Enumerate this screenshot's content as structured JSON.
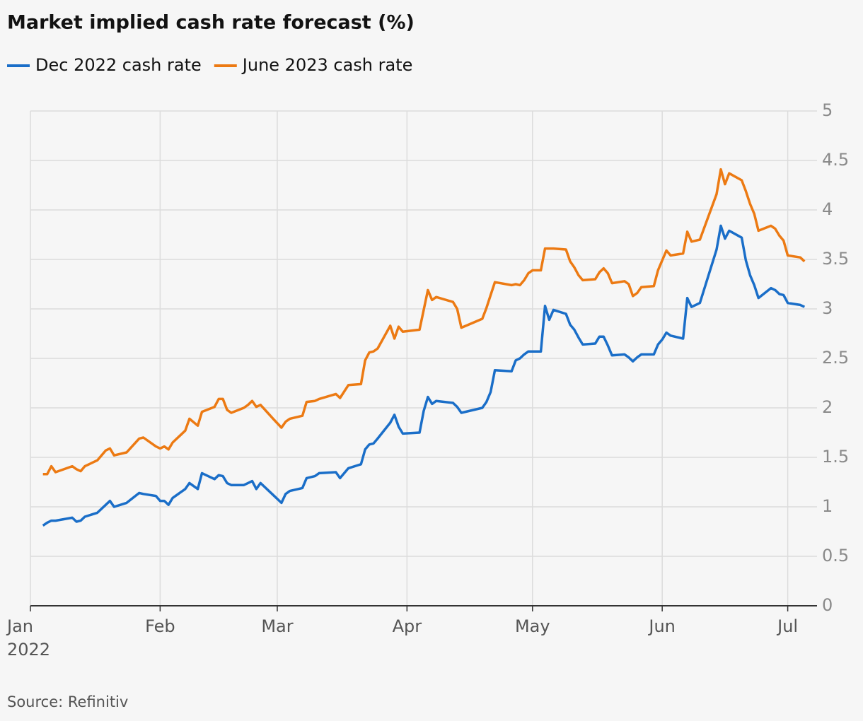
{
  "chart_data": {
    "type": "line",
    "title": "Market implied cash rate forecast (%)",
    "source": "Source: Refinitiv",
    "x_start_year": "2022",
    "x": [
      3,
      4,
      5,
      6,
      10,
      11,
      12,
      13,
      16,
      18,
      19,
      20,
      23,
      26,
      27,
      30,
      31,
      32,
      33,
      34,
      37,
      38,
      40,
      41,
      44,
      45,
      46,
      47,
      48,
      51,
      52,
      53,
      54,
      55,
      58,
      60,
      61,
      62,
      65,
      66,
      68,
      69,
      73,
      74,
      76,
      79,
      80,
      81,
      82,
      83,
      86,
      87,
      88,
      89,
      93,
      94,
      95,
      96,
      97,
      101,
      102,
      103,
      108,
      109,
      110,
      111,
      115,
      116,
      117,
      118,
      119,
      120,
      122,
      123,
      124,
      125,
      128,
      129,
      130,
      131,
      132,
      135,
      136,
      137,
      138,
      139,
      142,
      143,
      144,
      145,
      146,
      149,
      150,
      151,
      152,
      153,
      156,
      157,
      158,
      159,
      160,
      164,
      165,
      166,
      167,
      170,
      171,
      172,
      173,
      174,
      177,
      178,
      179,
      180,
      181,
      184,
      185
    ],
    "series": [
      {
        "name": "Dec 2022 cash rate",
        "color": "#1a6ec8",
        "values": [
          0.81,
          0.84,
          0.86,
          0.86,
          0.89,
          0.85,
          0.86,
          0.9,
          0.94,
          1.02,
          1.06,
          1.0,
          1.04,
          1.14,
          1.13,
          1.11,
          1.06,
          1.06,
          1.02,
          1.09,
          1.18,
          1.24,
          1.18,
          1.34,
          1.28,
          1.32,
          1.31,
          1.24,
          1.22,
          1.22,
          1.24,
          1.26,
          1.18,
          1.24,
          1.12,
          1.04,
          1.13,
          1.16,
          1.19,
          1.29,
          1.31,
          1.34,
          1.35,
          1.29,
          1.39,
          1.43,
          1.58,
          1.63,
          1.64,
          1.69,
          1.85,
          1.93,
          1.81,
          1.74,
          1.75,
          1.97,
          2.11,
          2.04,
          2.07,
          2.05,
          2.01,
          1.95,
          2.0,
          2.06,
          2.16,
          2.38,
          2.37,
          2.48,
          2.5,
          2.54,
          2.57,
          2.57,
          2.57,
          3.03,
          2.89,
          2.99,
          2.95,
          2.84,
          2.79,
          2.71,
          2.64,
          2.65,
          2.72,
          2.72,
          2.63,
          2.53,
          2.54,
          2.51,
          2.47,
          2.51,
          2.54,
          2.54,
          2.64,
          2.69,
          2.76,
          2.73,
          2.7,
          3.11,
          3.02,
          3.04,
          3.06,
          3.6,
          3.84,
          3.71,
          3.79,
          3.72,
          3.49,
          3.34,
          3.24,
          3.11,
          3.21,
          3.19,
          3.15,
          3.14,
          3.06,
          3.04,
          3.02
        ]
      },
      {
        "name": "June 2023 cash rate",
        "color": "#ec7a13",
        "values": [
          1.33,
          1.33,
          1.41,
          1.35,
          1.41,
          1.38,
          1.36,
          1.41,
          1.47,
          1.57,
          1.59,
          1.52,
          1.55,
          1.69,
          1.7,
          1.61,
          1.59,
          1.61,
          1.58,
          1.65,
          1.77,
          1.89,
          1.82,
          1.96,
          2.01,
          2.09,
          2.09,
          1.98,
          1.95,
          2.0,
          2.03,
          2.07,
          2.01,
          2.03,
          1.89,
          1.8,
          1.86,
          1.89,
          1.92,
          2.06,
          2.07,
          2.09,
          2.14,
          2.1,
          2.23,
          2.24,
          2.48,
          2.56,
          2.57,
          2.6,
          2.83,
          2.7,
          2.82,
          2.77,
          2.79,
          2.99,
          3.19,
          3.09,
          3.12,
          3.07,
          3.0,
          2.81,
          2.9,
          3.01,
          3.14,
          3.27,
          3.24,
          3.25,
          3.24,
          3.29,
          3.36,
          3.39,
          3.39,
          3.61,
          3.61,
          3.61,
          3.6,
          3.48,
          3.42,
          3.34,
          3.29,
          3.3,
          3.37,
          3.41,
          3.36,
          3.26,
          3.28,
          3.25,
          3.13,
          3.16,
          3.22,
          3.23,
          3.39,
          3.49,
          3.59,
          3.54,
          3.56,
          3.78,
          3.68,
          3.69,
          3.7,
          4.16,
          4.41,
          4.26,
          4.37,
          4.3,
          4.19,
          4.06,
          3.96,
          3.79,
          3.84,
          3.81,
          3.74,
          3.69,
          3.54,
          3.52,
          3.48
        ]
      }
    ],
    "xlim": [
      0,
      188
    ],
    "xticks": [
      {
        "value": 0,
        "label": "Jan"
      },
      {
        "value": 31,
        "label": "Feb"
      },
      {
        "value": 59,
        "label": "Mar"
      },
      {
        "value": 90,
        "label": "Apr"
      },
      {
        "value": 120,
        "label": "May"
      },
      {
        "value": 151,
        "label": "Jun"
      },
      {
        "value": 181,
        "label": "Jul"
      }
    ],
    "ylim": [
      0,
      5
    ],
    "yticks": [
      0,
      0.5,
      1,
      1.5,
      2,
      2.5,
      3,
      3.5,
      4,
      4.5,
      5
    ],
    "grid": true
  }
}
